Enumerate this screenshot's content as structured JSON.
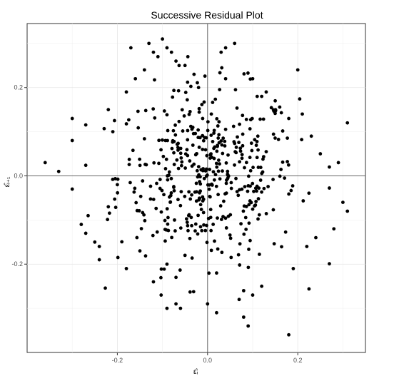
{
  "chart_data": {
    "type": "scatter",
    "title": "Successive Residual Plot",
    "xlabel": "ε̂ᵢ",
    "ylabel": "ε̂ᵢ₊₁",
    "xlim": [
      -0.4,
      0.35
    ],
    "ylim": [
      -0.4,
      0.345
    ],
    "x_ticks": [
      -0.2,
      0.0,
      0.2
    ],
    "x_tick_labels": [
      "-0.2",
      "0.0",
      "0.2"
    ],
    "y_ticks": [
      -0.2,
      0.0,
      0.2
    ],
    "y_tick_labels": [
      "-0.2",
      "0.0",
      "0.2"
    ],
    "grid": true,
    "reference_lines": {
      "x": 0,
      "y": 0
    },
    "point_color": "#000000",
    "n_points_sample": 520,
    "series": [
      {
        "x": [
          -0.36,
          -0.33,
          -0.3,
          -0.3,
          -0.3,
          -0.28,
          -0.27,
          -0.25,
          -0.24,
          -0.24,
          -0.22,
          -0.22,
          -0.21,
          -0.2,
          -0.18,
          -0.18,
          -0.17,
          -0.16,
          -0.15,
          -0.14,
          -0.13,
          -0.12,
          -0.12,
          -0.11,
          -0.1,
          -0.09,
          -0.09,
          -0.08,
          -0.07,
          -0.07,
          -0.06,
          -0.05,
          -0.03,
          -0.02,
          0.0,
          0.02,
          0.03,
          0.04,
          0.04,
          0.06,
          0.07,
          0.08,
          0.09,
          0.1,
          0.11,
          0.12,
          0.13,
          0.15,
          0.18,
          0.2,
          0.21,
          0.23,
          0.25,
          0.27,
          0.29,
          0.3,
          0.31,
          0.31,
          0.28,
          0.24,
          0.22,
          0.19,
          0.12,
          0.1,
          -0.09,
          -0.07,
          -0.05,
          0.02,
          0.08,
          0.18
        ],
        "y": [
          0.03,
          0.01,
          0.13,
          0.08,
          -0.03,
          -0.11,
          -0.13,
          -0.15,
          -0.16,
          -0.19,
          0.15,
          -0.07,
          0.1,
          -0.02,
          -0.21,
          0.19,
          0.29,
          0.22,
          -0.17,
          0.24,
          0.3,
          0.28,
          -0.24,
          0.27,
          0.31,
          0.29,
          -0.3,
          0.28,
          0.26,
          -0.29,
          -0.3,
          0.25,
          0.23,
          0.2,
          -0.29,
          -0.31,
          0.28,
          0.29,
          0.22,
          0.3,
          -0.28,
          -0.32,
          -0.34,
          0.22,
          0.18,
          0.18,
          0.19,
          0.17,
          0.13,
          0.24,
          0.14,
          0.09,
          0.05,
          0.02,
          0.03,
          -0.06,
          0.12,
          -0.08,
          -0.12,
          -0.14,
          -0.16,
          -0.21,
          -0.25,
          -0.27,
          -0.2,
          -0.23,
          -0.18,
          -0.22,
          -0.26,
          -0.36
        ]
      }
    ]
  }
}
